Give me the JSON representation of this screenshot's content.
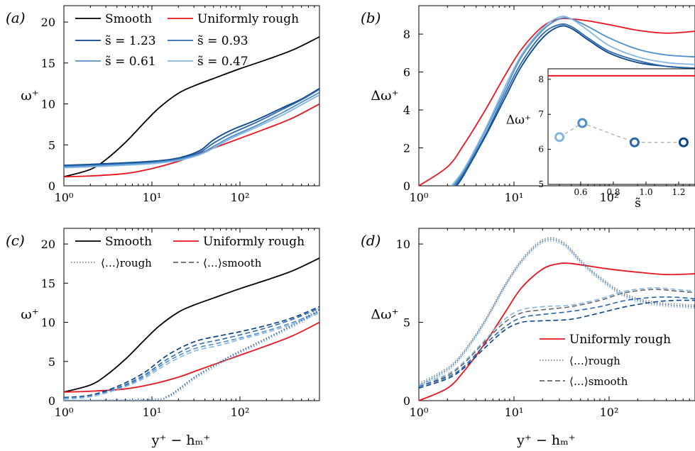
{
  "chart_data": [
    {
      "panel": "(a)",
      "type": "line",
      "ylabel": "ω⁺",
      "xscale": "log",
      "xlim": [
        1,
        800
      ],
      "ylim": [
        0,
        22
      ],
      "x_ticks": [
        1,
        10,
        100
      ],
      "x_tick_labels": [
        "10⁰",
        "10¹",
        "10²"
      ],
      "y_ticks": [
        0,
        5,
        10,
        15,
        20
      ],
      "y_tick_labels": [
        "0",
        "5",
        "10",
        "15",
        "20"
      ],
      "legend_position": "top",
      "series": [
        {
          "name": "Smooth",
          "color": "#000000",
          "dash": "solid",
          "x": [
            1,
            2,
            3,
            5,
            8,
            12,
            20,
            30,
            50,
            100,
            200,
            400,
            800
          ],
          "y": [
            1.1,
            2.0,
            3.2,
            5.3,
            7.6,
            9.5,
            11.3,
            12.2,
            13.1,
            14.3,
            15.4,
            16.6,
            18.2
          ]
        },
        {
          "name": "Uniformly rough",
          "color": "#e8141e",
          "dash": "solid",
          "x": [
            1,
            2,
            5,
            10,
            20,
            30,
            50,
            100,
            200,
            400,
            800
          ],
          "y": [
            1.1,
            1.2,
            1.5,
            2.1,
            3.0,
            3.7,
            4.6,
            5.8,
            7.0,
            8.3,
            10.0
          ]
        },
        {
          "name": "s̃ = 1.23",
          "color": "#08458a",
          "dash": "solid",
          "x": [
            1,
            3,
            10,
            20,
            35,
            50,
            80,
            150,
            300,
            500,
            800
          ],
          "y": [
            2.5,
            2.7,
            3.0,
            3.4,
            4.3,
            5.6,
            6.8,
            8.0,
            9.5,
            10.6,
            11.9
          ]
        },
        {
          "name": "s̃ = 0.93",
          "color": "#2a68ad",
          "dash": "solid",
          "x": [
            1,
            3,
            10,
            20,
            35,
            50,
            80,
            150,
            300,
            500,
            800
          ],
          "y": [
            2.4,
            2.6,
            2.9,
            3.3,
            4.1,
            5.2,
            6.4,
            7.7,
            9.3,
            10.5,
            11.8
          ]
        },
        {
          "name": "s̃ = 0.61",
          "color": "#4d8fcb",
          "dash": "solid",
          "x": [
            1,
            3,
            10,
            20,
            35,
            50,
            80,
            150,
            300,
            500,
            800
          ],
          "y": [
            2.3,
            2.5,
            2.8,
            3.2,
            3.9,
            4.8,
            6.0,
            7.3,
            8.9,
            10.2,
            11.4
          ]
        },
        {
          "name": "s̃ = 0.47",
          "color": "#84b6e1",
          "dash": "solid",
          "x": [
            1,
            3,
            10,
            20,
            35,
            50,
            80,
            150,
            300,
            500,
            800
          ],
          "y": [
            2.2,
            2.4,
            2.7,
            3.1,
            3.8,
            4.6,
            5.8,
            7.1,
            8.6,
            9.9,
            11.1
          ]
        }
      ]
    },
    {
      "panel": "(b)",
      "type": "line",
      "ylabel": "Δω⁺",
      "xscale": "log",
      "xlim": [
        1,
        800
      ],
      "ylim": [
        0,
        9.5
      ],
      "x_ticks": [
        1,
        10,
        100
      ],
      "x_tick_labels": [
        "10⁰",
        "10¹",
        "10²"
      ],
      "y_ticks": [
        0,
        2,
        4,
        6,
        8
      ],
      "y_tick_labels": [
        "0",
        "2",
        "4",
        "6",
        "8"
      ],
      "series": [
        {
          "color": "#e8141e",
          "dash": "solid",
          "x": [
            1,
            2,
            3,
            5,
            8,
            12,
            20,
            30,
            40,
            60,
            100,
            200,
            400,
            800
          ],
          "y": [
            0,
            1.0,
            2.2,
            4.0,
            5.8,
            7.2,
            8.4,
            8.8,
            8.8,
            8.7,
            8.5,
            8.2,
            8.05,
            8.15
          ]
        },
        {
          "color": "#08458a",
          "dash": "solid",
          "x": [
            2.5,
            3,
            5,
            8,
            12,
            20,
            30,
            40,
            60,
            100,
            200,
            400,
            800
          ],
          "y": [
            0,
            0.6,
            2.6,
            4.6,
            6.3,
            7.8,
            8.4,
            8.3,
            7.7,
            7.0,
            6.5,
            6.3,
            6.2
          ]
        },
        {
          "color": "#2a68ad",
          "dash": "solid",
          "x": [
            2.4,
            3,
            5,
            8,
            12,
            20,
            30,
            40,
            60,
            100,
            200,
            400,
            800
          ],
          "y": [
            0,
            0.7,
            2.7,
            4.8,
            6.5,
            8.0,
            8.5,
            8.4,
            7.8,
            7.1,
            6.6,
            6.3,
            6.2
          ]
        },
        {
          "color": "#4d8fcb",
          "dash": "solid",
          "x": [
            2.3,
            3,
            5,
            8,
            12,
            20,
            30,
            40,
            60,
            100,
            200,
            400,
            800
          ],
          "y": [
            0,
            0.8,
            2.9,
            5.0,
            6.8,
            8.2,
            8.8,
            8.8,
            8.4,
            7.8,
            7.2,
            6.9,
            6.8
          ]
        },
        {
          "color": "#84b6e1",
          "dash": "solid",
          "x": [
            2.2,
            3,
            5,
            8,
            12,
            20,
            30,
            40,
            60,
            100,
            200,
            400,
            800
          ],
          "y": [
            0,
            0.9,
            3.0,
            5.2,
            6.9,
            8.3,
            8.9,
            8.8,
            8.2,
            7.4,
            6.8,
            6.5,
            6.4
          ]
        }
      ],
      "inset": {
        "xlabel": "s̃",
        "ylabel": "Δω⁺",
        "xlim": [
          0.4,
          1.3
        ],
        "ylim": [
          5,
          8.3
        ],
        "x_ticks": [
          0.6,
          0.8,
          1.0,
          1.2
        ],
        "x_tick_labels": [
          "0.6",
          "0.8",
          "1.0",
          "1.2"
        ],
        "y_ticks": [
          5,
          6,
          7,
          8
        ],
        "y_tick_labels": [
          "5",
          "6",
          "7",
          "8"
        ],
        "reference_line": {
          "y": 8.1,
          "color": "#e8141e"
        },
        "points": [
          {
            "x": 0.47,
            "y": 6.35,
            "color": "#84b6e1"
          },
          {
            "x": 0.61,
            "y": 6.75,
            "color": "#4d8fcb"
          },
          {
            "x": 0.93,
            "y": 6.2,
            "color": "#2a68ad"
          },
          {
            "x": 1.23,
            "y": 6.2,
            "color": "#08458a"
          }
        ]
      }
    },
    {
      "panel": "(c)",
      "type": "line",
      "xlabel": "y⁺ − hₘ⁺",
      "ylabel": "ω⁺",
      "xscale": "log",
      "xlim": [
        1,
        800
      ],
      "ylim": [
        0,
        22
      ],
      "x_ticks": [
        1,
        10,
        100
      ],
      "x_tick_labels": [
        "10⁰",
        "10¹",
        "10²"
      ],
      "y_ticks": [
        0,
        5,
        10,
        15,
        20
      ],
      "y_tick_labels": [
        "0",
        "5",
        "10",
        "15",
        "20"
      ],
      "legend_position": "top",
      "series": [
        {
          "name": "Smooth",
          "color": "#000000",
          "dash": "solid",
          "x": [
            1,
            2,
            3,
            5,
            8,
            12,
            20,
            30,
            50,
            100,
            200,
            400,
            800
          ],
          "y": [
            1.1,
            2.0,
            3.2,
            5.3,
            7.6,
            9.5,
            11.3,
            12.2,
            13.1,
            14.3,
            15.4,
            16.6,
            18.2
          ]
        },
        {
          "name": "Uniformly rough",
          "color": "#e8141e",
          "dash": "solid",
          "x": [
            1,
            2,
            5,
            10,
            20,
            30,
            50,
            100,
            200,
            400,
            800
          ],
          "y": [
            1.1,
            1.2,
            1.5,
            2.1,
            3.0,
            3.7,
            4.6,
            5.8,
            7.0,
            8.3,
            10.0
          ]
        },
        {
          "name": "⟨…⟩rough",
          "color": "#888888",
          "dash": "dotted",
          "x": [
            1,
            10,
            15,
            20,
            30,
            50,
            80,
            150,
            300,
            500,
            800
          ],
          "y": [
            0.05,
            0.15,
            0.6,
            1.5,
            3.0,
            4.5,
            5.8,
            7.3,
            9.0,
            10.4,
            11.8
          ]
        },
        {
          "name": "⟨…⟩smooth",
          "color": "#666666",
          "dash": "dashed",
          "x": [
            1,
            2,
            4,
            8,
            15,
            30,
            60,
            100,
            200,
            400,
            800
          ],
          "y": [
            0.4,
            0.7,
            1.8,
            3.5,
            5.8,
            7.5,
            8.3,
            8.8,
            9.6,
            10.6,
            12.0
          ]
        },
        {
          "color": "#08458a",
          "dash": "dashed",
          "x": [
            1,
            2,
            4,
            8,
            15,
            30,
            60,
            100,
            200,
            400,
            800
          ],
          "y": [
            0.4,
            0.7,
            1.8,
            3.5,
            5.8,
            7.5,
            8.3,
            8.8,
            9.6,
            10.6,
            12.0
          ]
        },
        {
          "color": "#2a68ad",
          "dash": "dashed",
          "x": [
            1,
            2,
            4,
            8,
            15,
            30,
            60,
            100,
            200,
            400,
            800
          ],
          "y": [
            0.3,
            0.6,
            1.6,
            3.2,
            5.3,
            7.0,
            7.8,
            8.4,
            9.3,
            10.4,
            11.8
          ]
        },
        {
          "color": "#4d8fcb",
          "dash": "dashed",
          "x": [
            1,
            2,
            4,
            8,
            15,
            30,
            60,
            100,
            200,
            400,
            800
          ],
          "y": [
            0.3,
            0.6,
            1.5,
            3.0,
            5.0,
            6.6,
            7.4,
            8.0,
            8.9,
            10.0,
            11.4
          ]
        },
        {
          "color": "#84b6e1",
          "dash": "dashed",
          "x": [
            1,
            2,
            4,
            8,
            15,
            30,
            60,
            100,
            200,
            400,
            800
          ],
          "y": [
            0.2,
            0.5,
            1.4,
            2.8,
            4.7,
            6.3,
            7.1,
            7.8,
            8.7,
            9.8,
            11.2
          ]
        },
        {
          "color": "#2a68ad",
          "dash": "dotted",
          "x": [
            1,
            10,
            15,
            20,
            30,
            50,
            80,
            150,
            300,
            500,
            800
          ],
          "y": [
            0.05,
            0.15,
            0.5,
            1.4,
            2.9,
            4.4,
            5.7,
            7.2,
            8.9,
            10.2,
            11.6
          ]
        },
        {
          "color": "#84b6e1",
          "dash": "dotted",
          "x": [
            1,
            10,
            15,
            20,
            30,
            50,
            80,
            150,
            300,
            500,
            800
          ],
          "y": [
            0.05,
            0.1,
            0.4,
            1.2,
            2.7,
            4.2,
            5.5,
            7.0,
            8.7,
            10.0,
            11.4
          ]
        }
      ]
    },
    {
      "panel": "(d)",
      "type": "line",
      "xlabel": "y⁺ − hₘ⁺",
      "ylabel": "Δω⁺",
      "xscale": "log",
      "xlim": [
        1,
        800
      ],
      "ylim": [
        0,
        11
      ],
      "x_ticks": [
        1,
        10,
        100
      ],
      "x_tick_labels": [
        "10⁰",
        "10¹",
        "10²"
      ],
      "y_ticks": [
        0,
        5,
        10
      ],
      "y_tick_labels": [
        "0",
        "5",
        "10"
      ],
      "legend_position": "bottom-right",
      "series": [
        {
          "name": "Uniformly rough",
          "color": "#e8141e",
          "dash": "solid",
          "x": [
            1,
            2,
            3,
            5,
            8,
            12,
            20,
            30,
            40,
            60,
            100,
            200,
            400,
            800
          ],
          "y": [
            0,
            0.8,
            1.9,
            3.7,
            5.6,
            7.2,
            8.4,
            8.75,
            8.75,
            8.6,
            8.4,
            8.2,
            8.05,
            8.1
          ]
        },
        {
          "name": "⟨…⟩rough",
          "color": "#888888",
          "dash": "dotted",
          "x": [
            1,
            2,
            3,
            5,
            8,
            12,
            18,
            25,
            35,
            50,
            80,
            150,
            300,
            800
          ],
          "y": [
            1.1,
            2.1,
            3.2,
            5.2,
            7.4,
            9.0,
            10.1,
            10.4,
            10.0,
            9.0,
            7.9,
            6.8,
            6.3,
            6.1
          ]
        },
        {
          "name": "⟨…⟩smooth",
          "color": "#666666",
          "dash": "dashed",
          "x": [
            1,
            2,
            3,
            5,
            8,
            12,
            20,
            40,
            80,
            150,
            300,
            500,
            800
          ],
          "y": [
            0.9,
            1.6,
            2.4,
            3.8,
            5.0,
            5.6,
            5.8,
            6.0,
            6.4,
            6.9,
            7.1,
            7.0,
            6.9
          ]
        },
        {
          "color": "#2a68ad",
          "dash": "dotted",
          "x": [
            1,
            2,
            3,
            5,
            8,
            12,
            18,
            25,
            35,
            50,
            80,
            150,
            300,
            800
          ],
          "y": [
            1.0,
            2.0,
            3.1,
            5.1,
            7.3,
            8.9,
            10.0,
            10.3,
            9.9,
            8.9,
            7.8,
            6.7,
            6.2,
            6.0
          ]
        },
        {
          "color": "#84b6e1",
          "dash": "dotted",
          "x": [
            1,
            2,
            3,
            5,
            8,
            12,
            18,
            25,
            35,
            50,
            80,
            150,
            300,
            800
          ],
          "y": [
            0.9,
            1.9,
            3.0,
            5.0,
            7.2,
            8.8,
            9.9,
            10.2,
            9.8,
            8.8,
            7.7,
            6.6,
            6.1,
            5.9
          ]
        },
        {
          "color": "#08458a",
          "dash": "dashed",
          "x": [
            1,
            2,
            3,
            5,
            8,
            12,
            20,
            40,
            80,
            150,
            300,
            500,
            800
          ],
          "y": [
            0.8,
            1.4,
            2.1,
            3.4,
            4.5,
            5.0,
            5.1,
            5.2,
            5.6,
            6.0,
            6.3,
            6.4,
            6.4
          ]
        },
        {
          "color": "#2a68ad",
          "dash": "dashed",
          "x": [
            1,
            2,
            3,
            5,
            8,
            12,
            20,
            40,
            80,
            150,
            300,
            500,
            800
          ],
          "y": [
            0.9,
            1.5,
            2.2,
            3.6,
            4.7,
            5.3,
            5.5,
            5.7,
            6.0,
            6.4,
            6.6,
            6.6,
            6.5
          ]
        },
        {
          "color": "#84b6e1",
          "dash": "dashed",
          "x": [
            1,
            2,
            3,
            5,
            8,
            12,
            20,
            40,
            80,
            150,
            300,
            500,
            800
          ],
          "y": [
            1.0,
            1.7,
            2.5,
            3.9,
            5.2,
            5.8,
            6.0,
            6.1,
            6.5,
            7.0,
            7.2,
            7.1,
            7.0
          ]
        }
      ]
    }
  ]
}
